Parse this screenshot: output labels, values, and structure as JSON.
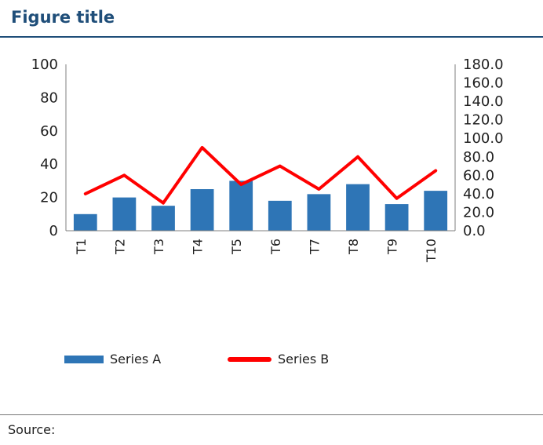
{
  "header": {
    "title": "Figure title"
  },
  "legend": {
    "series_a": "Series A",
    "series_b": "Series B"
  },
  "footer": {
    "source": "Source:"
  },
  "chart_data": {
    "type": "bar+line",
    "title": "Figure title",
    "y_left": {
      "ylim": [
        0,
        100
      ],
      "ticks": [
        "0",
        "20",
        "40",
        "60",
        "80",
        "100"
      ]
    },
    "y_right": {
      "ylim": [
        0,
        180
      ],
      "ticks": [
        "0.0",
        "20.0",
        "40.0",
        "60.0",
        "80.0",
        "100.0",
        "120.0",
        "140.0",
        "160.0",
        "180.0"
      ]
    },
    "x_tick_labels": [
      "T1",
      "T2",
      "T3",
      "T4",
      "T5",
      "T6",
      "T7",
      "T8",
      "T9",
      "T10"
    ],
    "series": [
      {
        "name": "Series A",
        "type": "bar",
        "axis": "left",
        "color": "#2e75b6",
        "values": [
          10,
          20,
          15,
          25,
          30,
          18,
          22,
          28,
          16,
          24
        ]
      },
      {
        "name": "Series B",
        "type": "line",
        "axis": "right",
        "color": "#ff0000",
        "values": [
          40,
          60,
          30,
          90,
          50,
          70,
          45,
          80,
          35,
          65
        ]
      }
    ]
  }
}
